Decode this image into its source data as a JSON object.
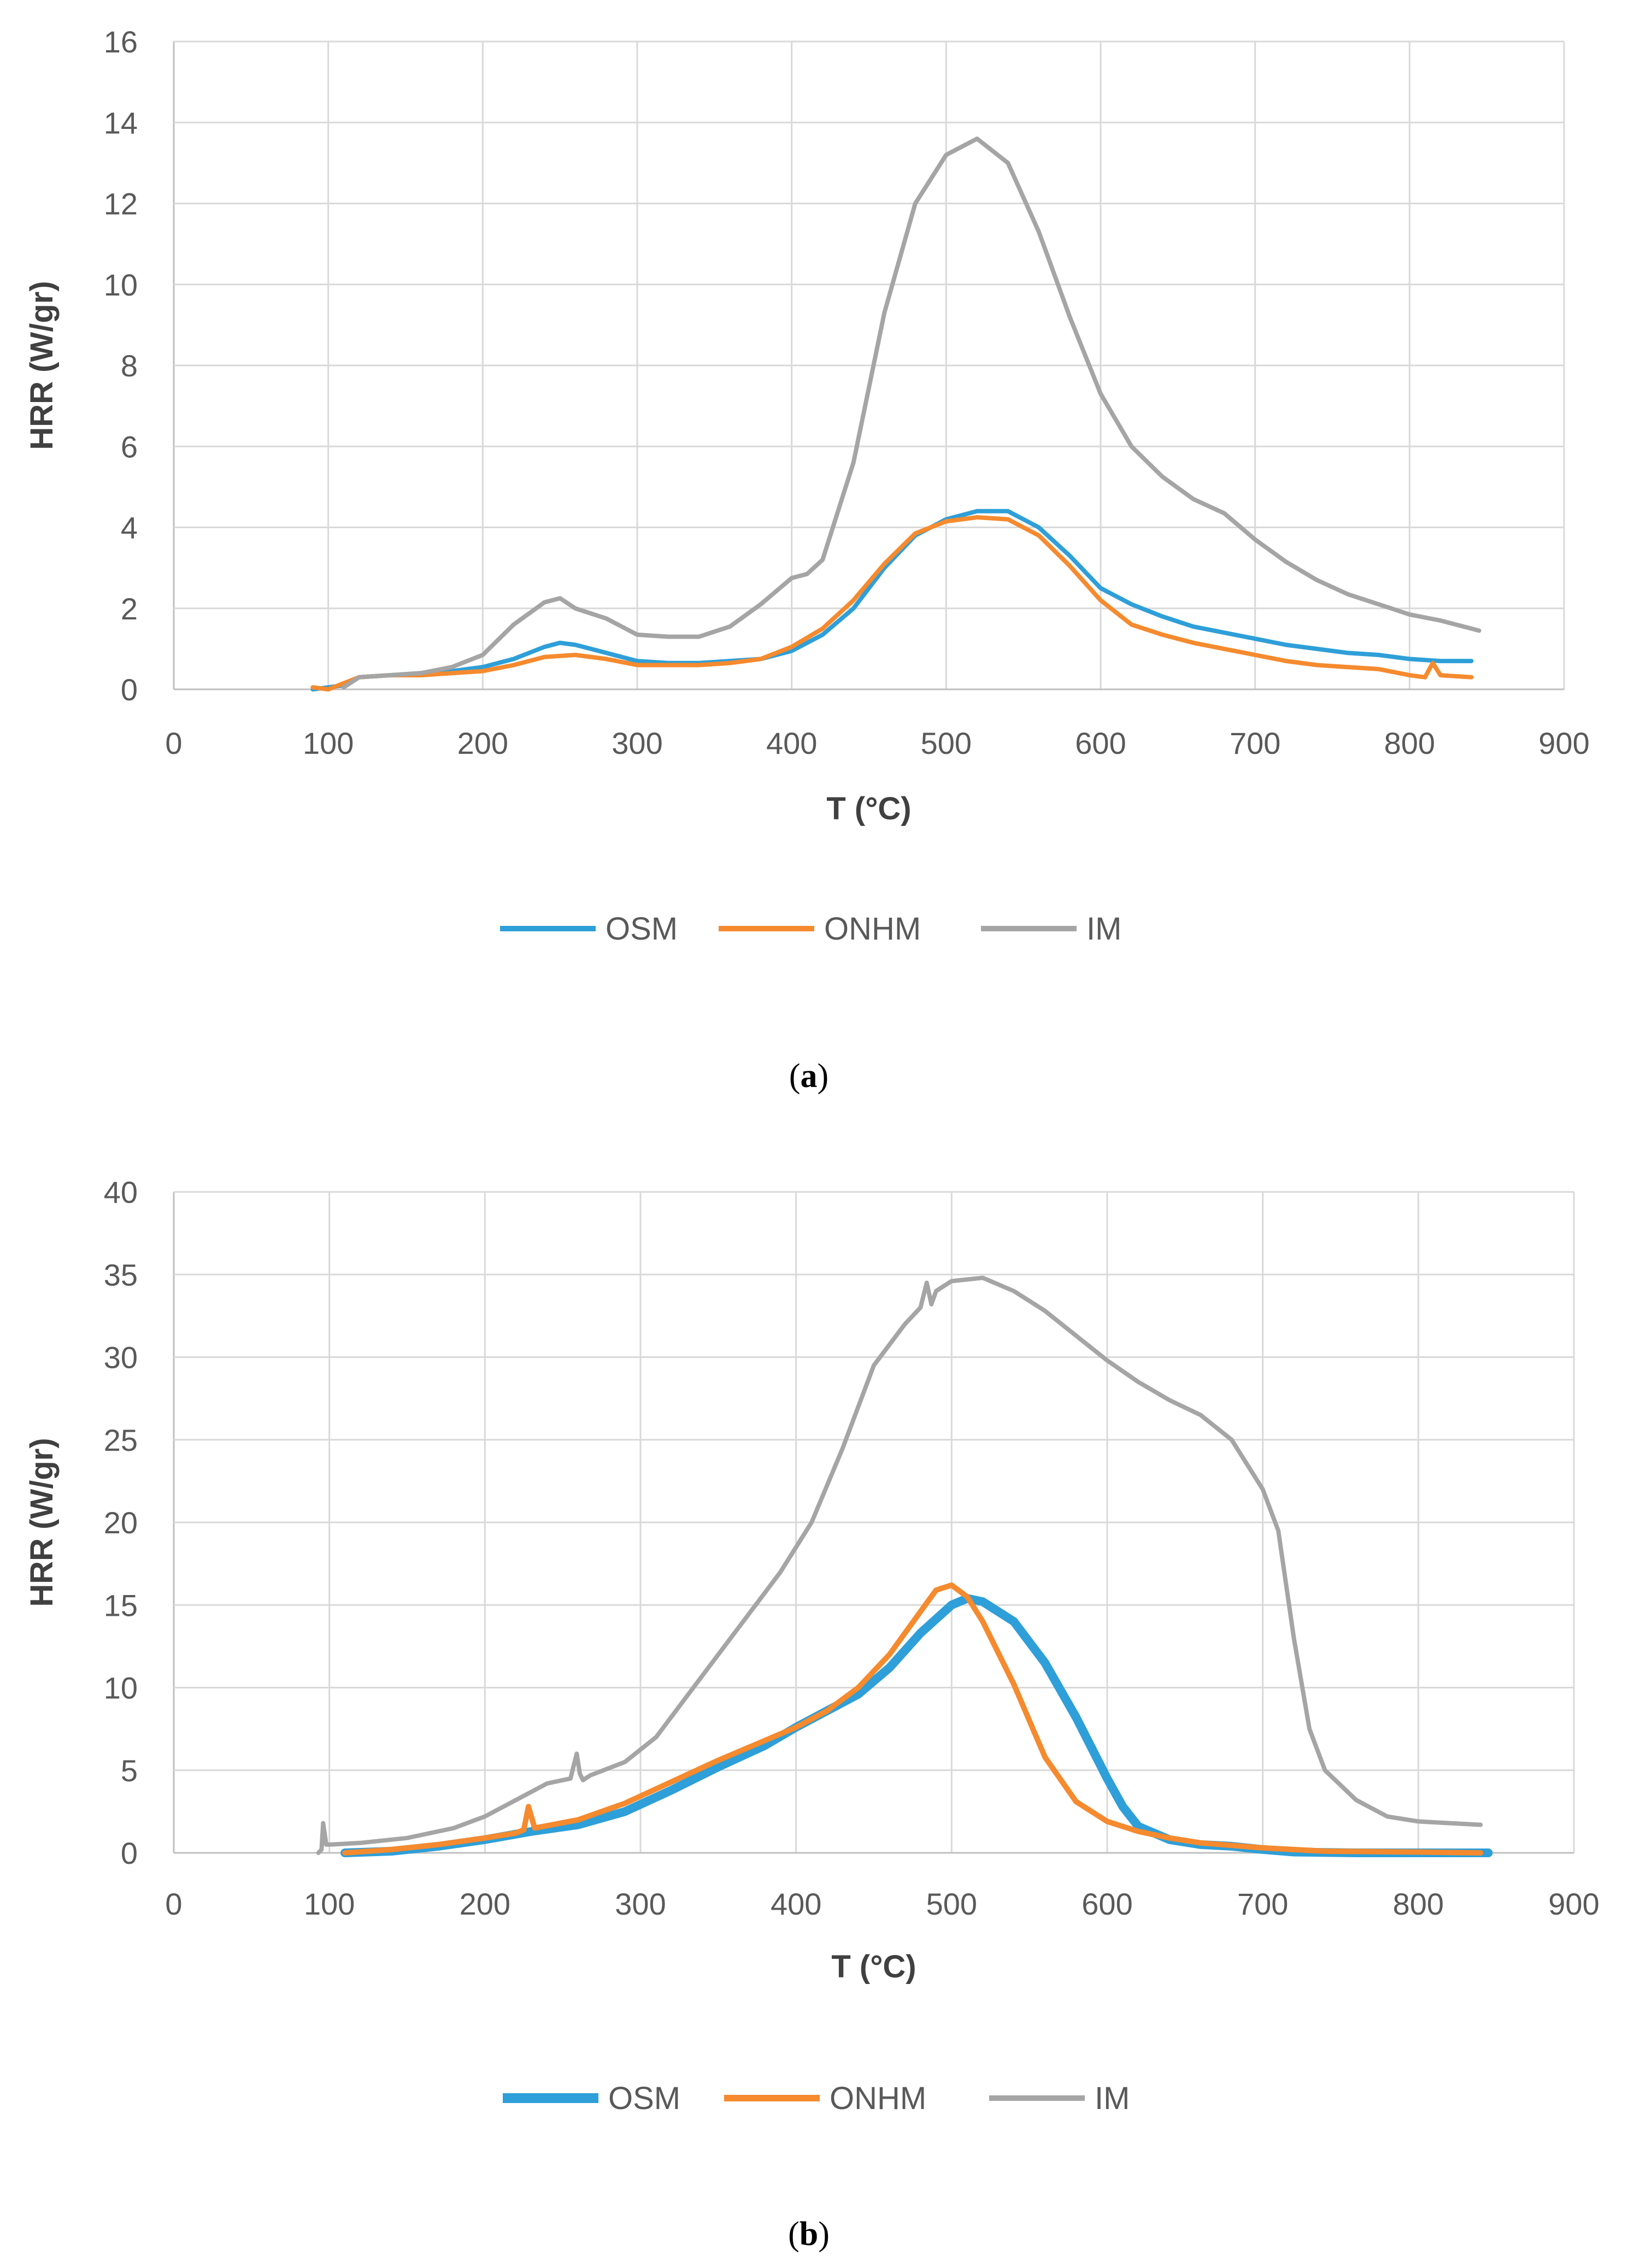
{
  "chart_data": [
    {
      "type": "line",
      "caption_open": "(",
      "caption_letter": "a",
      "caption_close": ")",
      "xlabel": "T (°C)",
      "ylabel": "HRR (W/gr)",
      "xlim": [
        0,
        900
      ],
      "ylim": [
        0,
        16
      ],
      "xticks": [
        0,
        100,
        200,
        300,
        400,
        500,
        600,
        700,
        800,
        900
      ],
      "yticks": [
        0,
        2,
        4,
        6,
        8,
        10,
        12,
        14,
        16
      ],
      "grid": true,
      "legend_position": "bottom",
      "series": [
        {
          "name": "OSM",
          "color": "#2e9fd8",
          "x": [
            90,
            100,
            110,
            120,
            140,
            160,
            180,
            200,
            220,
            240,
            250,
            260,
            280,
            300,
            320,
            340,
            360,
            380,
            400,
            420,
            440,
            460,
            480,
            500,
            520,
            540,
            560,
            580,
            600,
            620,
            640,
            660,
            680,
            700,
            720,
            740,
            760,
            780,
            800,
            820,
            840
          ],
          "y": [
            0.0,
            0.05,
            0.1,
            0.3,
            0.35,
            0.4,
            0.45,
            0.55,
            0.75,
            1.05,
            1.15,
            1.1,
            0.9,
            0.7,
            0.65,
            0.65,
            0.7,
            0.75,
            0.95,
            1.35,
            2.0,
            3.0,
            3.8,
            4.2,
            4.4,
            4.4,
            4.0,
            3.3,
            2.5,
            2.1,
            1.8,
            1.55,
            1.4,
            1.25,
            1.1,
            1.0,
            0.9,
            0.85,
            0.75,
            0.7,
            0.7
          ]
        },
        {
          "name": "ONHM",
          "color": "#f58a2e",
          "x": [
            90,
            100,
            110,
            120,
            140,
            160,
            180,
            200,
            220,
            240,
            260,
            280,
            300,
            320,
            340,
            360,
            380,
            400,
            420,
            440,
            460,
            480,
            500,
            520,
            540,
            560,
            580,
            600,
            620,
            640,
            660,
            680,
            700,
            720,
            740,
            760,
            780,
            800,
            810,
            815,
            820,
            840
          ],
          "y": [
            0.05,
            0.0,
            0.15,
            0.3,
            0.35,
            0.35,
            0.4,
            0.45,
            0.6,
            0.8,
            0.85,
            0.75,
            0.6,
            0.6,
            0.6,
            0.65,
            0.75,
            1.05,
            1.5,
            2.2,
            3.1,
            3.85,
            4.15,
            4.25,
            4.2,
            3.8,
            3.05,
            2.2,
            1.6,
            1.35,
            1.15,
            1.0,
            0.85,
            0.7,
            0.6,
            0.55,
            0.5,
            0.35,
            0.3,
            0.65,
            0.35,
            0.3
          ]
        },
        {
          "name": "IM",
          "color": "#a5a5a5",
          "x": [
            110,
            120,
            140,
            160,
            180,
            200,
            220,
            240,
            250,
            260,
            280,
            300,
            320,
            340,
            360,
            380,
            400,
            410,
            420,
            440,
            460,
            480,
            500,
            520,
            540,
            560,
            580,
            600,
            620,
            640,
            660,
            680,
            700,
            720,
            740,
            760,
            780,
            800,
            820,
            840,
            845
          ],
          "y": [
            0.05,
            0.3,
            0.35,
            0.4,
            0.55,
            0.85,
            1.6,
            2.15,
            2.25,
            2.0,
            1.75,
            1.35,
            1.3,
            1.3,
            1.55,
            2.1,
            2.75,
            2.85,
            3.2,
            5.6,
            9.3,
            12.0,
            13.2,
            13.6,
            13.0,
            11.3,
            9.2,
            7.3,
            6.0,
            5.25,
            4.7,
            4.35,
            3.7,
            3.15,
            2.7,
            2.35,
            2.1,
            1.85,
            1.7,
            1.5,
            1.45
          ]
        }
      ]
    },
    {
      "type": "line",
      "caption_open": "(",
      "caption_letter": "b",
      "caption_close": ")",
      "xlabel": "T (°C)",
      "ylabel": "HRR (W/gr)",
      "xlim": [
        0,
        900
      ],
      "ylim": [
        0,
        40
      ],
      "xticks": [
        0,
        100,
        200,
        300,
        400,
        500,
        600,
        700,
        800,
        900
      ],
      "yticks": [
        0,
        5,
        10,
        15,
        20,
        25,
        30,
        35,
        40
      ],
      "grid": true,
      "legend_position": "bottom",
      "series": [
        {
          "name": "OSM",
          "color": "#2e9fd8",
          "x": [
            110,
            140,
            170,
            200,
            230,
            260,
            290,
            320,
            350,
            380,
            400,
            420,
            440,
            460,
            480,
            500,
            510,
            520,
            540,
            560,
            580,
            600,
            610,
            620,
            640,
            660,
            680,
            700,
            720,
            760,
            800,
            845
          ],
          "y": [
            0.0,
            0.1,
            0.4,
            0.8,
            1.3,
            1.7,
            2.5,
            3.8,
            5.2,
            6.5,
            7.6,
            8.6,
            9.6,
            11.2,
            13.3,
            15.0,
            15.4,
            15.2,
            14.0,
            11.5,
            8.2,
            4.5,
            2.8,
            1.6,
            0.8,
            0.5,
            0.4,
            0.2,
            0.05,
            0.0,
            0.0,
            0.0
          ]
        },
        {
          "name": "ONHM",
          "color": "#f58a2e",
          "x": [
            110,
            140,
            170,
            200,
            220,
            225,
            228,
            232,
            260,
            290,
            320,
            350,
            380,
            400,
            420,
            440,
            460,
            480,
            490,
            500,
            510,
            520,
            540,
            560,
            580,
            600,
            620,
            640,
            660,
            700,
            740,
            800,
            840
          ],
          "y": [
            0.0,
            0.2,
            0.5,
            0.9,
            1.2,
            1.4,
            2.8,
            1.5,
            2.0,
            3.0,
            4.3,
            5.6,
            6.8,
            7.6,
            8.6,
            10.0,
            12.0,
            14.6,
            15.9,
            16.2,
            15.5,
            14.0,
            10.2,
            5.8,
            3.1,
            1.9,
            1.3,
            0.9,
            0.6,
            0.3,
            0.1,
            0.05,
            0.0
          ]
        },
        {
          "name": "IM",
          "color": "#a5a5a5",
          "x": [
            93,
            95,
            96,
            98,
            100,
            120,
            150,
            180,
            200,
            220,
            240,
            255,
            259,
            261,
            263,
            268,
            290,
            310,
            330,
            350,
            370,
            390,
            410,
            430,
            450,
            470,
            480,
            484,
            487,
            490,
            500,
            520,
            540,
            560,
            580,
            600,
            620,
            640,
            660,
            680,
            690,
            700,
            710,
            720,
            730,
            740,
            760,
            780,
            800,
            820,
            840
          ],
          "y": [
            0.0,
            0.2,
            1.8,
            0.5,
            0.5,
            0.6,
            0.9,
            1.5,
            2.2,
            3.2,
            4.2,
            4.5,
            6.0,
            4.8,
            4.4,
            4.7,
            5.5,
            7.0,
            9.5,
            12.0,
            14.5,
            17.0,
            20.0,
            24.5,
            29.5,
            32.0,
            33.0,
            34.5,
            33.2,
            34.0,
            34.6,
            34.8,
            34.0,
            32.8,
            31.3,
            29.8,
            28.5,
            27.4,
            26.5,
            25.0,
            23.5,
            22.0,
            19.5,
            13.0,
            7.5,
            5.0,
            3.2,
            2.2,
            1.9,
            1.8,
            1.7
          ]
        }
      ]
    }
  ]
}
